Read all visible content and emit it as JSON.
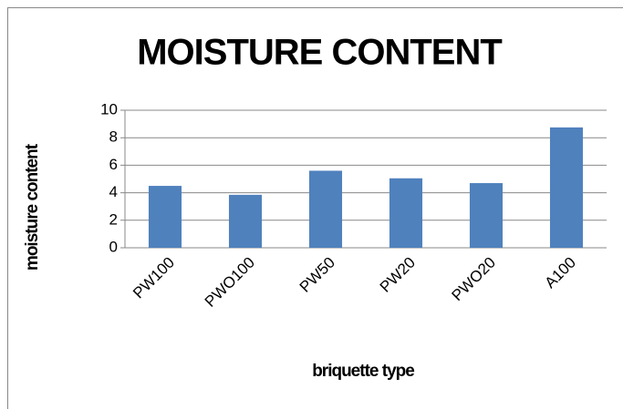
{
  "chart_data": {
    "type": "bar",
    "title": "MOISTURE CONTENT",
    "x_label": "briquette type",
    "y_label": "moisture content",
    "categories": [
      "PW100",
      "PWO100",
      "PW50",
      "PW20",
      "PWO20",
      "A100"
    ],
    "values": [
      4.5,
      3.85,
      5.6,
      5.05,
      4.7,
      8.75
    ],
    "color": "#4f81bd",
    "ylim": [
      0,
      10
    ],
    "yticks": [
      0,
      2,
      4,
      6,
      8,
      10
    ],
    "grid": true
  }
}
